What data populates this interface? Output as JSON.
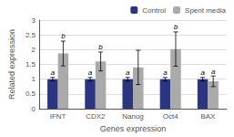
{
  "chart_data": {
    "type": "bar",
    "categories": [
      "IFNT",
      "CDX2",
      "Nanog",
      "Oct4",
      "BAX"
    ],
    "series": [
      {
        "name": "Control",
        "color": "#2B3580",
        "values": [
          1.0,
          1.0,
          1.0,
          1.0,
          1.0
        ],
        "errors": [
          0.06,
          0.06,
          0.06,
          0.06,
          0.06
        ],
        "letters": [
          "a",
          "a",
          "a",
          "a",
          "a"
        ]
      },
      {
        "name": "Spent media",
        "color": "#AAAAAA",
        "values": [
          1.87,
          1.6,
          1.4,
          2.02,
          0.93
        ],
        "errors": [
          0.42,
          0.32,
          0.58,
          0.58,
          0.18
        ],
        "letters": [
          "b",
          "b",
          null,
          "b",
          "a"
        ]
      }
    ],
    "xlabel": "Genes expression",
    "ylabel": "Related expression",
    "ylim": [
      0,
      3
    ],
    "yticks": [
      0,
      0.5,
      1.0,
      1.5,
      2.0,
      2.5,
      3
    ],
    "grid": true,
    "legend": "upper right"
  }
}
